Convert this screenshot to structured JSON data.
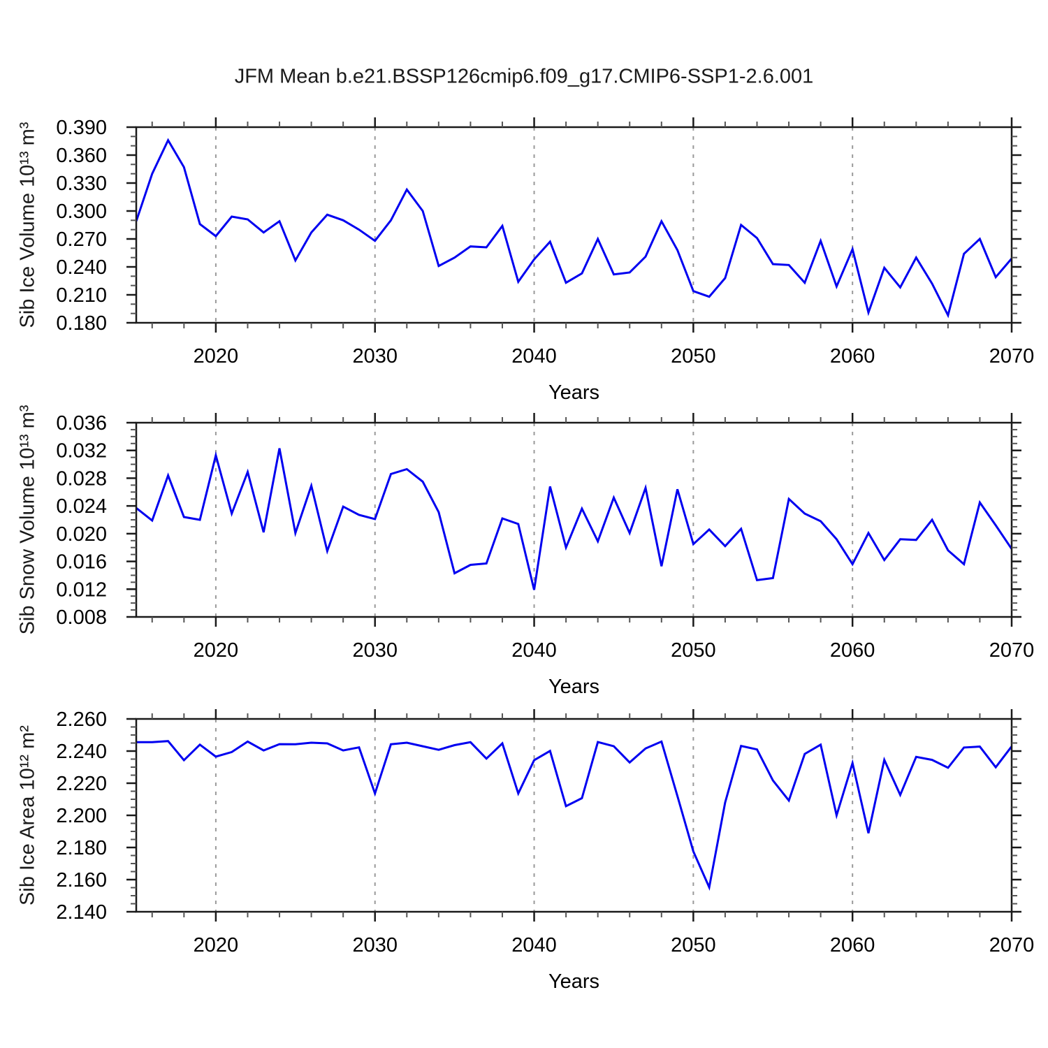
{
  "title": "JFM Mean b.e21.BSSP126cmip6.f09_g17.CMIP6-SSP1-2.6.001",
  "colors": {
    "line": "#0000f0",
    "frame": "#1a1a1a",
    "grid": "#9a9a9a",
    "minor_tick": "#555555",
    "text": "#000000",
    "background": "#ffffff"
  },
  "chart_data": [
    {
      "type": "line",
      "ylabel": "Sib Ice Volume 10¹³ m³",
      "xlabel": "Years",
      "x_start": 2015,
      "x_end": 2070,
      "x_major_ticks": [
        2020,
        2030,
        2040,
        2050,
        2060,
        2070
      ],
      "x_minor_step": 2,
      "grid_years": [
        2020,
        2030,
        2040,
        2050,
        2060
      ],
      "ylim": [
        0.18,
        0.39
      ],
      "y_major_step": 0.03,
      "y_minor_step": 0.01,
      "y_tick_labels": [
        "0.390",
        "0.360",
        "0.330",
        "0.300",
        "0.270",
        "0.240",
        "0.210",
        "0.180"
      ],
      "legend": "none",
      "grid": "vertical-dashed",
      "years": [
        2015,
        2016,
        2017,
        2018,
        2019,
        2020,
        2021,
        2022,
        2023,
        2024,
        2025,
        2026,
        2027,
        2028,
        2029,
        2030,
        2031,
        2032,
        2033,
        2034,
        2035,
        2036,
        2037,
        2038,
        2039,
        2040,
        2041,
        2042,
        2043,
        2044,
        2045,
        2046,
        2047,
        2048,
        2049,
        2050,
        2051,
        2052,
        2053,
        2054,
        2055,
        2056,
        2057,
        2058,
        2059,
        2060,
        2061,
        2062,
        2063,
        2064,
        2065,
        2066,
        2067,
        2068,
        2069,
        2070
      ],
      "values": [
        0.289,
        0.34,
        0.376,
        0.347,
        0.286,
        0.273,
        0.294,
        0.291,
        0.277,
        0.289,
        0.247,
        0.277,
        0.296,
        0.29,
        0.28,
        0.268,
        0.29,
        0.323,
        0.3,
        0.241,
        0.25,
        0.262,
        0.261,
        0.284,
        0.224,
        0.248,
        0.267,
        0.223,
        0.233,
        0.27,
        0.232,
        0.234,
        0.251,
        0.289,
        0.258,
        0.214,
        0.208,
        0.228,
        0.285,
        0.271,
        0.243,
        0.242,
        0.223,
        0.268,
        0.219,
        0.259,
        0.191,
        0.239,
        0.218,
        0.25,
        0.222,
        0.188,
        0.254,
        0.27,
        0.229,
        0.249
      ]
    },
    {
      "type": "line",
      "ylabel": "Sib Snow Volume 10¹³ m³",
      "xlabel": "Years",
      "x_start": 2015,
      "x_end": 2070,
      "x_major_ticks": [
        2020,
        2030,
        2040,
        2050,
        2060,
        2070
      ],
      "x_minor_step": 2,
      "grid_years": [
        2020,
        2030,
        2040,
        2050,
        2060
      ],
      "ylim": [
        0.008,
        0.036
      ],
      "y_major_step": 0.004,
      "y_minor_step": 0.001,
      "y_tick_labels": [
        "0.036",
        "0.032",
        "0.028",
        "0.024",
        "0.020",
        "0.016",
        "0.012",
        "0.008"
      ],
      "legend": "none",
      "grid": "vertical-dashed",
      "years": [
        2015,
        2016,
        2017,
        2018,
        2019,
        2020,
        2021,
        2022,
        2023,
        2024,
        2025,
        2026,
        2027,
        2028,
        2029,
        2030,
        2031,
        2032,
        2033,
        2034,
        2035,
        2036,
        2037,
        2038,
        2039,
        2040,
        2041,
        2042,
        2043,
        2044,
        2045,
        2046,
        2047,
        2048,
        2049,
        2050,
        2051,
        2052,
        2053,
        2054,
        2055,
        2056,
        2057,
        2058,
        2059,
        2060,
        2061,
        2062,
        2063,
        2064,
        2065,
        2066,
        2067,
        2068,
        2069,
        2070
      ],
      "values": [
        0.0237,
        0.0219,
        0.0284,
        0.0224,
        0.022,
        0.0313,
        0.0229,
        0.0289,
        0.0202,
        0.0323,
        0.0201,
        0.0269,
        0.0175,
        0.0239,
        0.0227,
        0.0221,
        0.0286,
        0.0293,
        0.0275,
        0.0231,
        0.0143,
        0.0155,
        0.0157,
        0.0222,
        0.0214,
        0.0119,
        0.0268,
        0.018,
        0.0236,
        0.0189,
        0.0252,
        0.0201,
        0.0266,
        0.0153,
        0.0264,
        0.0185,
        0.0206,
        0.0182,
        0.0207,
        0.0133,
        0.0136,
        0.025,
        0.0229,
        0.0218,
        0.0192,
        0.0156,
        0.0201,
        0.0162,
        0.0192,
        0.0191,
        0.022,
        0.0176,
        0.0156,
        0.0245,
        0.0212,
        0.0178
      ]
    },
    {
      "type": "line",
      "ylabel": "Sib Ice Area 10¹² m²",
      "xlabel": "Years",
      "x_start": 2015,
      "x_end": 2070,
      "x_major_ticks": [
        2020,
        2030,
        2040,
        2050,
        2060,
        2070
      ],
      "x_minor_step": 2,
      "grid_years": [
        2020,
        2030,
        2040,
        2050,
        2060
      ],
      "ylim": [
        2.14,
        2.26
      ],
      "y_major_step": 0.02,
      "y_minor_step": 0.005,
      "y_tick_labels": [
        "2.260",
        "2.240",
        "2.220",
        "2.200",
        "2.180",
        "2.160",
        "2.140"
      ],
      "legend": "none",
      "grid": "vertical-dashed",
      "years": [
        2015,
        2016,
        2017,
        2018,
        2019,
        2020,
        2021,
        2022,
        2023,
        2024,
        2025,
        2026,
        2027,
        2028,
        2029,
        2030,
        2031,
        2032,
        2033,
        2034,
        2035,
        2036,
        2037,
        2038,
        2039,
        2040,
        2041,
        2042,
        2043,
        2044,
        2045,
        2046,
        2047,
        2048,
        2049,
        2050,
        2051,
        2052,
        2053,
        2054,
        2055,
        2056,
        2057,
        2058,
        2059,
        2060,
        2061,
        2062,
        2063,
        2064,
        2065,
        2066,
        2067,
        2068,
        2069,
        2070
      ],
      "values": [
        2.2455,
        2.2455,
        2.2462,
        2.2343,
        2.244,
        2.2365,
        2.2394,
        2.2459,
        2.2404,
        2.2443,
        2.2442,
        2.2452,
        2.2448,
        2.2404,
        2.2423,
        2.2136,
        2.2442,
        2.2452,
        2.243,
        2.2408,
        2.2437,
        2.2455,
        2.2353,
        2.2448,
        2.2136,
        2.2343,
        2.2401,
        2.2057,
        2.2107,
        2.2456,
        2.243,
        2.2329,
        2.2416,
        2.2459,
        2.212,
        2.1775,
        2.1552,
        2.208,
        2.2432,
        2.241,
        2.2217,
        2.2092,
        2.2382,
        2.244,
        2.2,
        2.2325,
        2.1889,
        2.2345,
        2.2127,
        2.2364,
        2.2345,
        2.2296,
        2.2422,
        2.2428,
        2.2299,
        2.2429
      ]
    }
  ]
}
